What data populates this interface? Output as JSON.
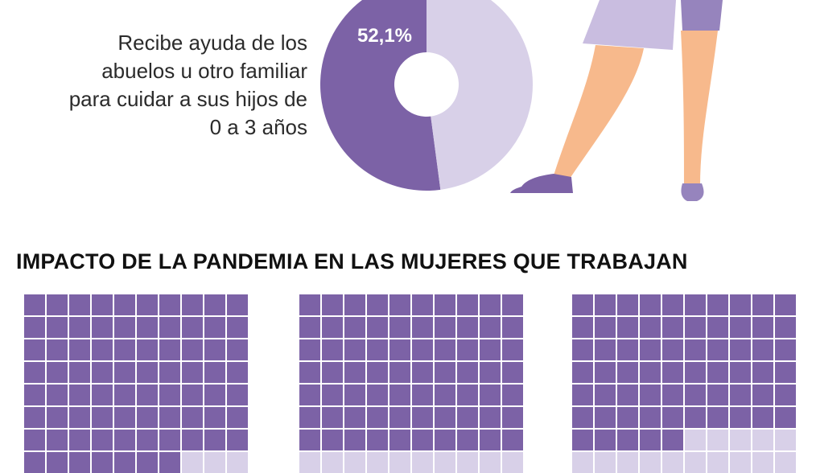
{
  "colors": {
    "filled": "#7c62a6",
    "light": "#d8d0e8",
    "skin": "#f7b98c",
    "skirt": "#c9bde0",
    "skirt_dark": "#9684bd"
  },
  "chart_data": [
    {
      "type": "pie",
      "donut": true,
      "caption": "Recibe ayuda de los\nabuelos u otro familiar\npara cuidar a sus hijos de\n0 a 3 años",
      "slices": [
        {
          "value": 52.1,
          "label": "52,1%",
          "color": "#7c62a6"
        },
        {
          "value": 47.9,
          "label": "",
          "color": "#d8d0e8"
        }
      ]
    },
    {
      "type": "waffle",
      "section_title": "IMPACTO DE LA PANDEMIA EN LAS MUJERES QUE TRABAJAN",
      "grid": {
        "columns": 10,
        "visible_rows": 8
      },
      "panels": [
        {
          "filled_cells": 77
        },
        {
          "filled_cells": 70
        },
        {
          "filled_cells": 65
        }
      ]
    }
  ]
}
